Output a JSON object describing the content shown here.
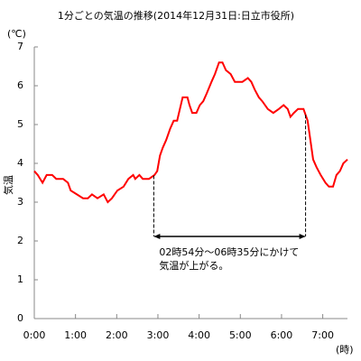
{
  "chart_data": {
    "type": "line",
    "title": "1分ごとの気温の推移(2014年12月31日:日立市役所)",
    "y_unit": "(℃)",
    "ylabel": "気温",
    "x_unit": "(時)",
    "x": [
      0,
      5,
      12,
      18,
      26,
      32,
      42,
      49,
      53,
      62,
      71,
      78,
      84,
      92,
      101,
      107,
      113,
      121,
      130,
      137,
      144,
      147,
      153,
      158,
      167,
      175,
      179,
      183,
      187,
      192,
      198,
      203,
      208,
      212,
      216,
      223,
      226,
      230,
      236,
      241,
      246,
      251,
      258,
      263,
      269,
      274,
      279,
      286,
      292,
      303,
      311,
      316,
      321,
      327,
      332,
      340,
      348,
      356,
      363,
      369,
      373,
      378,
      384,
      392,
      398,
      402,
      406,
      411,
      417,
      424,
      429,
      435,
      440,
      445,
      450,
      456
    ],
    "series": [
      {
        "name": "気温",
        "color": "#ff0000",
        "values": [
          3.8,
          3.7,
          3.5,
          3.7,
          3.7,
          3.6,
          3.6,
          3.5,
          3.3,
          3.2,
          3.1,
          3.1,
          3.2,
          3.1,
          3.2,
          3.0,
          3.1,
          3.3,
          3.4,
          3.6,
          3.7,
          3.6,
          3.7,
          3.6,
          3.6,
          3.7,
          3.8,
          4.2,
          4.4,
          4.6,
          4.9,
          5.1,
          5.1,
          5.4,
          5.7,
          5.7,
          5.5,
          5.3,
          5.3,
          5.5,
          5.6,
          5.8,
          6.1,
          6.3,
          6.6,
          6.6,
          6.4,
          6.3,
          6.1,
          6.1,
          6.2,
          6.1,
          5.9,
          5.7,
          5.6,
          5.4,
          5.3,
          5.4,
          5.5,
          5.4,
          5.2,
          5.3,
          5.4,
          5.4,
          5.1,
          4.6,
          4.1,
          3.9,
          3.7,
          3.5,
          3.4,
          3.4,
          3.7,
          3.8,
          4.0,
          4.1
        ]
      }
    ],
    "xlim": [
      0,
      456
    ],
    "xticks": [
      {
        "value": 0,
        "label": "0:00"
      },
      {
        "value": 60,
        "label": "1:00"
      },
      {
        "value": 120,
        "label": "2:00"
      },
      {
        "value": 180,
        "label": "3:00"
      },
      {
        "value": 240,
        "label": "4:00"
      },
      {
        "value": 300,
        "label": "5:00"
      },
      {
        "value": 360,
        "label": "6:00"
      },
      {
        "value": 420,
        "label": "7:00"
      }
    ],
    "ylim": [
      0,
      7
    ],
    "yticks": [
      0,
      1,
      2,
      3,
      4,
      5,
      6,
      7
    ],
    "annotation": {
      "lines": [
        "02時54分～06時35分にかけて",
        "気温が上がる。"
      ],
      "span": [
        174,
        395
      ]
    }
  }
}
